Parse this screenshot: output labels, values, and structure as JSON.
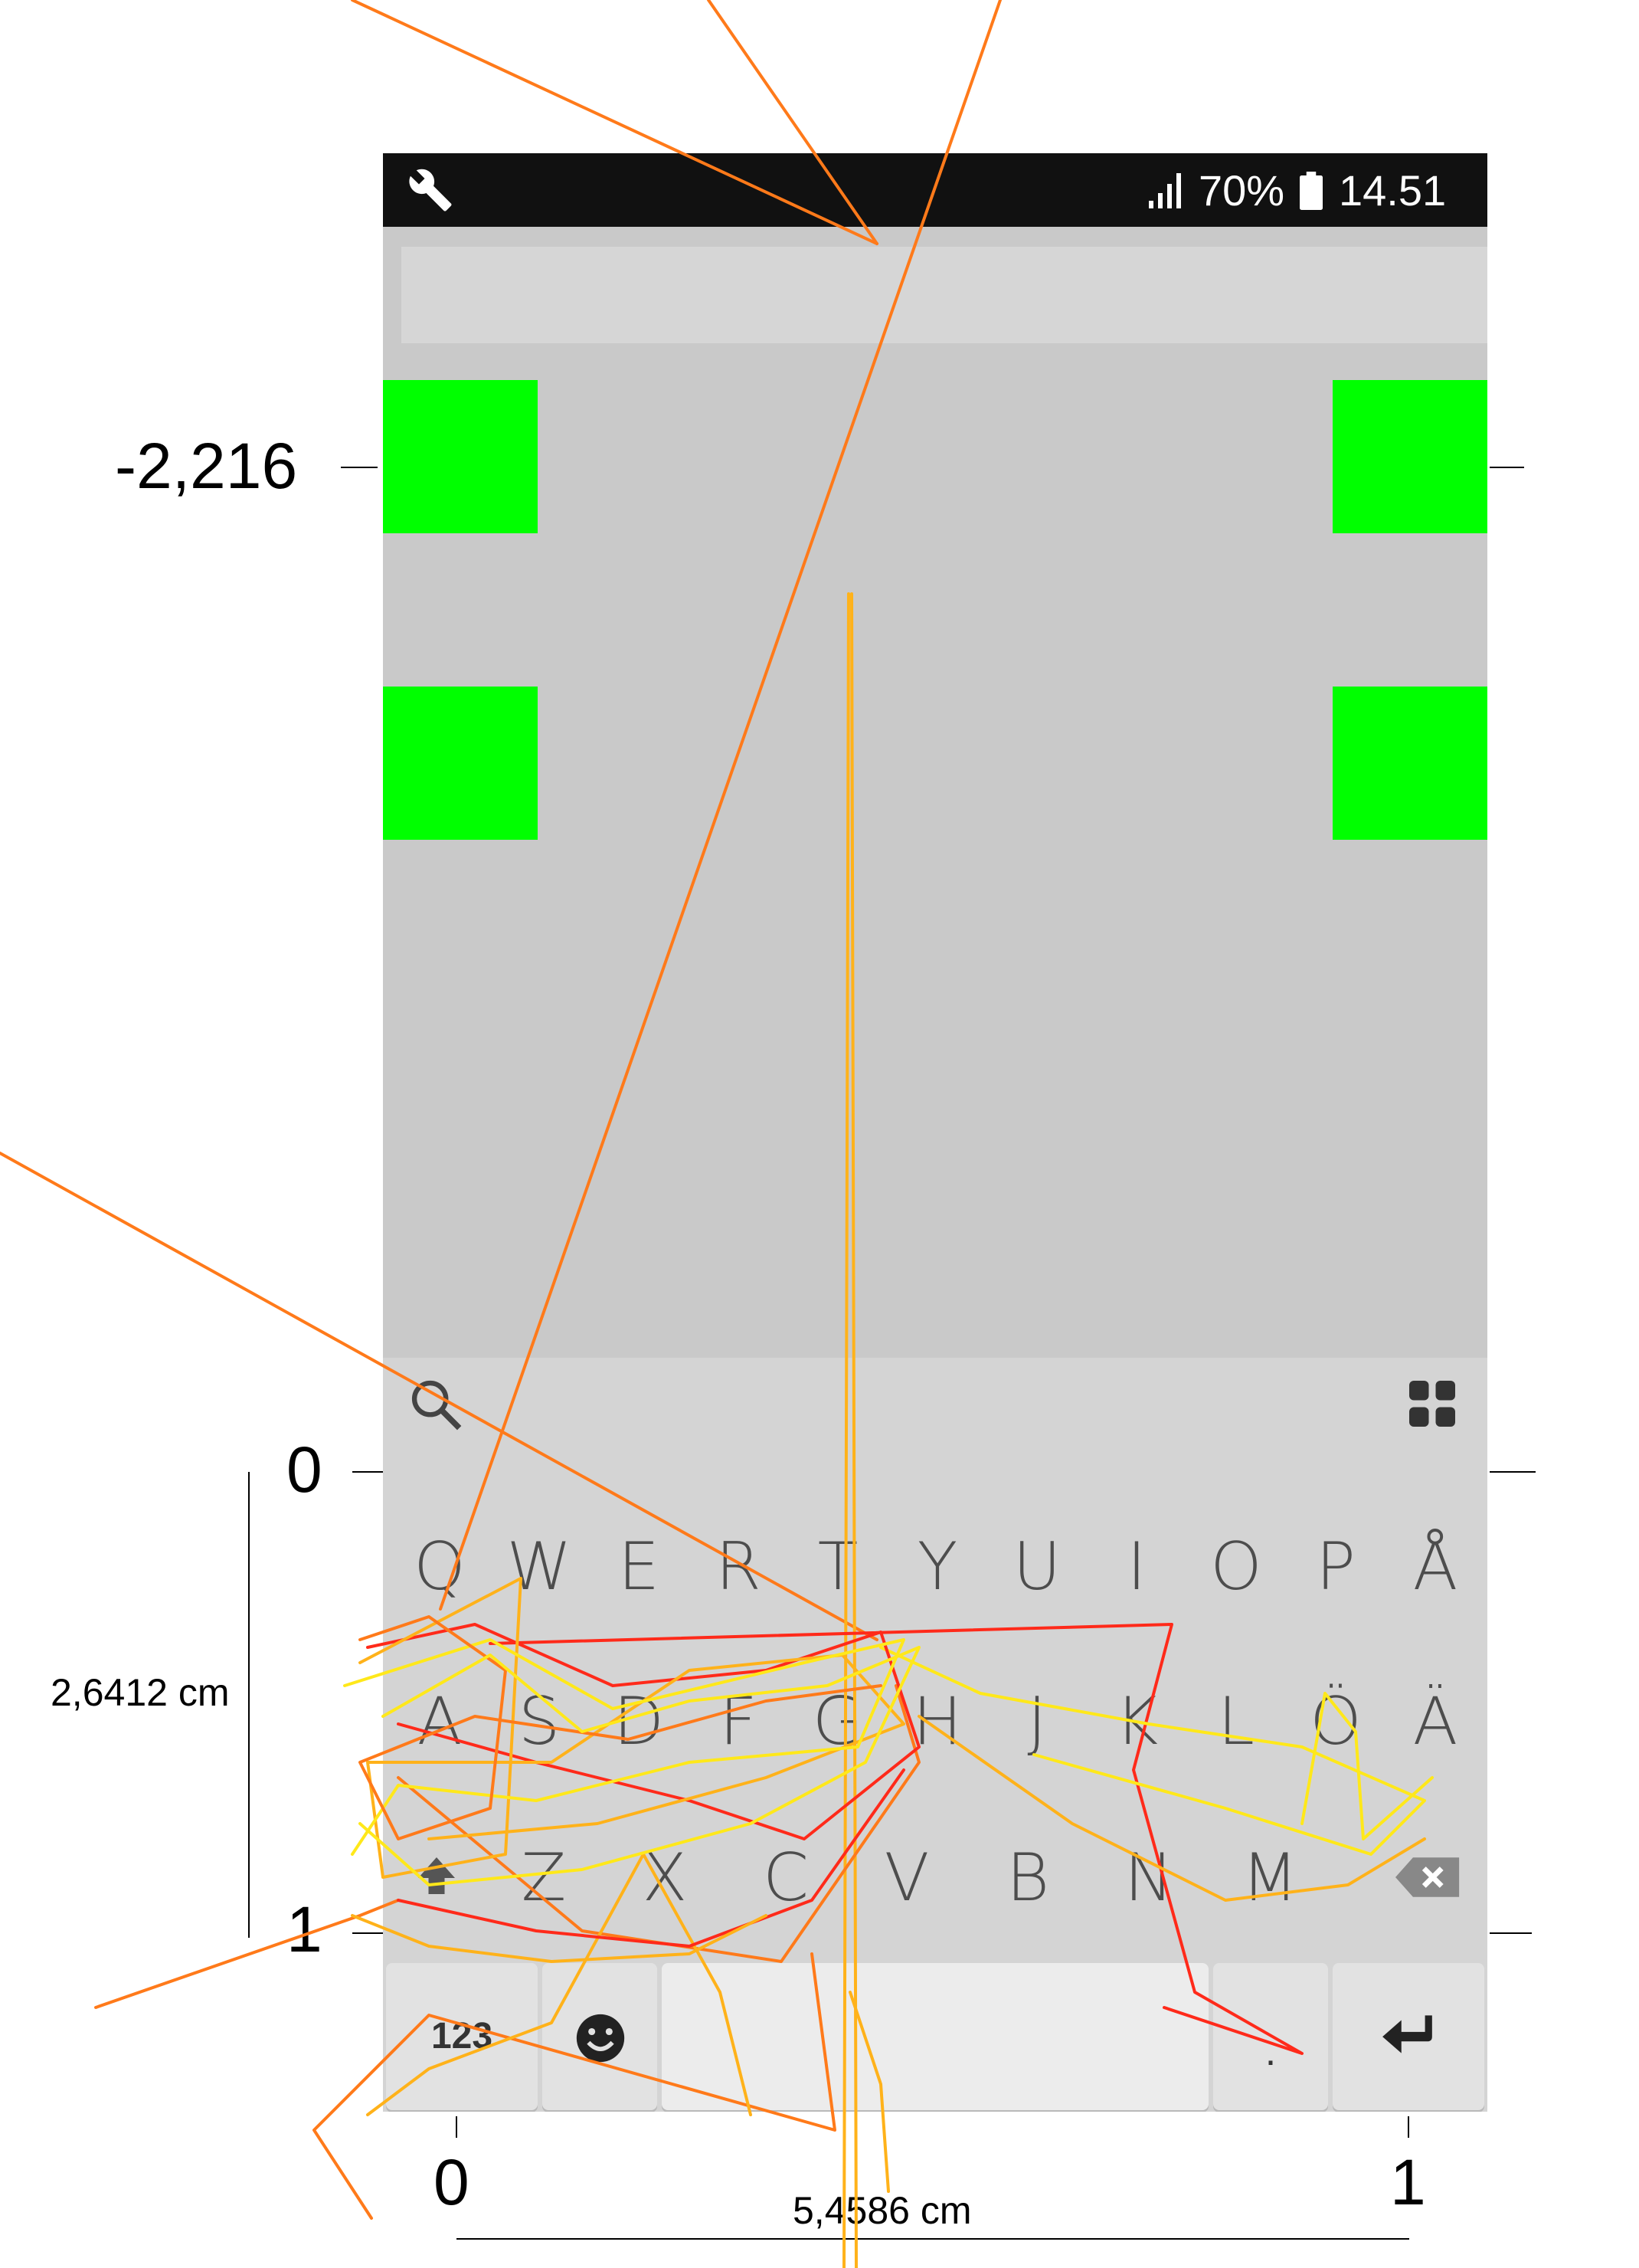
{
  "status_bar": {
    "left_icon": "wrench-icon",
    "signal_icon": "signal-icon",
    "battery_percent": "70%",
    "battery_icon": "battery-icon",
    "time": "14.51"
  },
  "text_input": {
    "value": ""
  },
  "targets": [
    {
      "name": "target-top-left"
    },
    {
      "name": "target-top-right"
    },
    {
      "name": "target-middle-left"
    },
    {
      "name": "target-middle-right"
    }
  ],
  "keyboard": {
    "toolbar": {
      "search_icon": "search-icon",
      "apps_icon": "grid-icon"
    },
    "row1": [
      "Q",
      "W",
      "E",
      "R",
      "T",
      "Y",
      "U",
      "I",
      "O",
      "P",
      "Å"
    ],
    "row2": [
      "A",
      "S",
      "D",
      "F",
      "G",
      "H",
      "J",
      "K",
      "L",
      "Ö",
      "Ä"
    ],
    "row3": [
      "Z",
      "X",
      "C",
      "V",
      "B",
      "N",
      "M"
    ],
    "shift_icon": "shift-icon",
    "backspace_icon": "backspace-icon",
    "numbers_label": "123",
    "emoji_icon": "smiley-icon",
    "period_label": ".",
    "enter_icon": "enter-icon"
  },
  "overlay": {
    "y_label_top": "-2,216",
    "y_label_zero": "0",
    "y_label_one": "1",
    "x_label_zero": "0",
    "x_label_one": "1",
    "height_measure": "2,6412 cm",
    "width_measure": "5,4586 cm",
    "trace_colors": [
      "#ff2a1a",
      "#ff7a1a",
      "#ffb21a",
      "#ffe81a"
    ]
  }
}
